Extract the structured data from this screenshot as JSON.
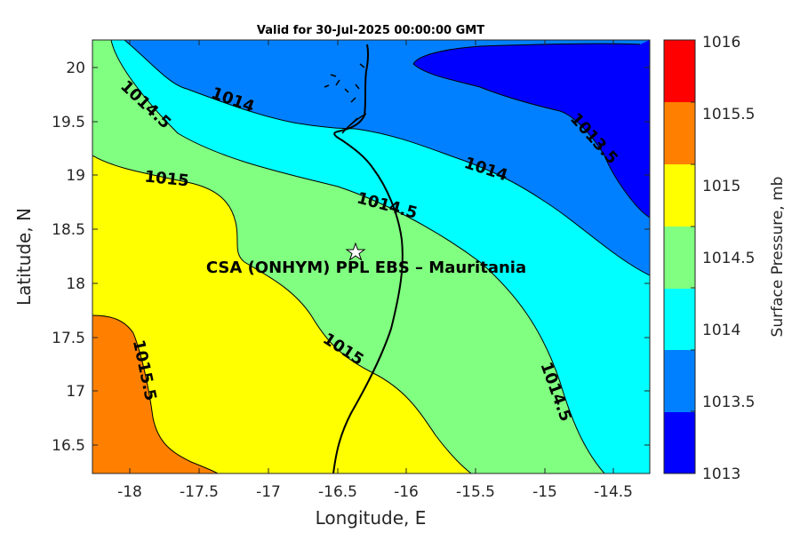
{
  "title": "Valid for 30-Jul-2025 00:00:00 GMT",
  "x_axis": {
    "label": "Longitude, E",
    "ticks": [
      "-18",
      "-17.5",
      "-17",
      "-16.5",
      "-16",
      "-15.5",
      "-15",
      "-14.5"
    ]
  },
  "y_axis": {
    "label": "Latitude, N",
    "ticks": [
      "16.5",
      "17",
      "17.5",
      "18",
      "18.5",
      "19",
      "19.5",
      "20"
    ]
  },
  "colorbar": {
    "label": "Surface Pressure, mb",
    "ticks": [
      "1013",
      "1013.5",
      "1014",
      "1014.5",
      "1015",
      "1015.5",
      "1016"
    ],
    "colors": [
      "#0000ff",
      "#0080ff",
      "#00ffff",
      "#80ff80",
      "#ffff00",
      "#ff8000",
      "#ff0000"
    ]
  },
  "contour_labels": [
    "1014.5",
    "1014",
    "1015",
    "1014.5",
    "1014",
    "1013.5",
    "1015",
    "1015.5",
    "1014.5"
  ],
  "station": {
    "name": "CSA (ONHYM) PPL EBS  – Mauritania",
    "lon": -16.33,
    "lat": 18.28,
    "marker": "star-icon"
  },
  "chart_data": {
    "type": "heatmap",
    "title": "Valid for 30-Jul-2025 00:00:00 GMT",
    "xlabel": "Longitude, E",
    "ylabel": "Latitude, N",
    "xlim": [
      -18.27,
      -14.2
    ],
    "ylim": [
      16.23,
      20.25
    ],
    "levels": [
      1013,
      1013.5,
      1014,
      1014.5,
      1015,
      1015.5,
      1016
    ],
    "colorbar_label": "Surface Pressure, mb"
  }
}
